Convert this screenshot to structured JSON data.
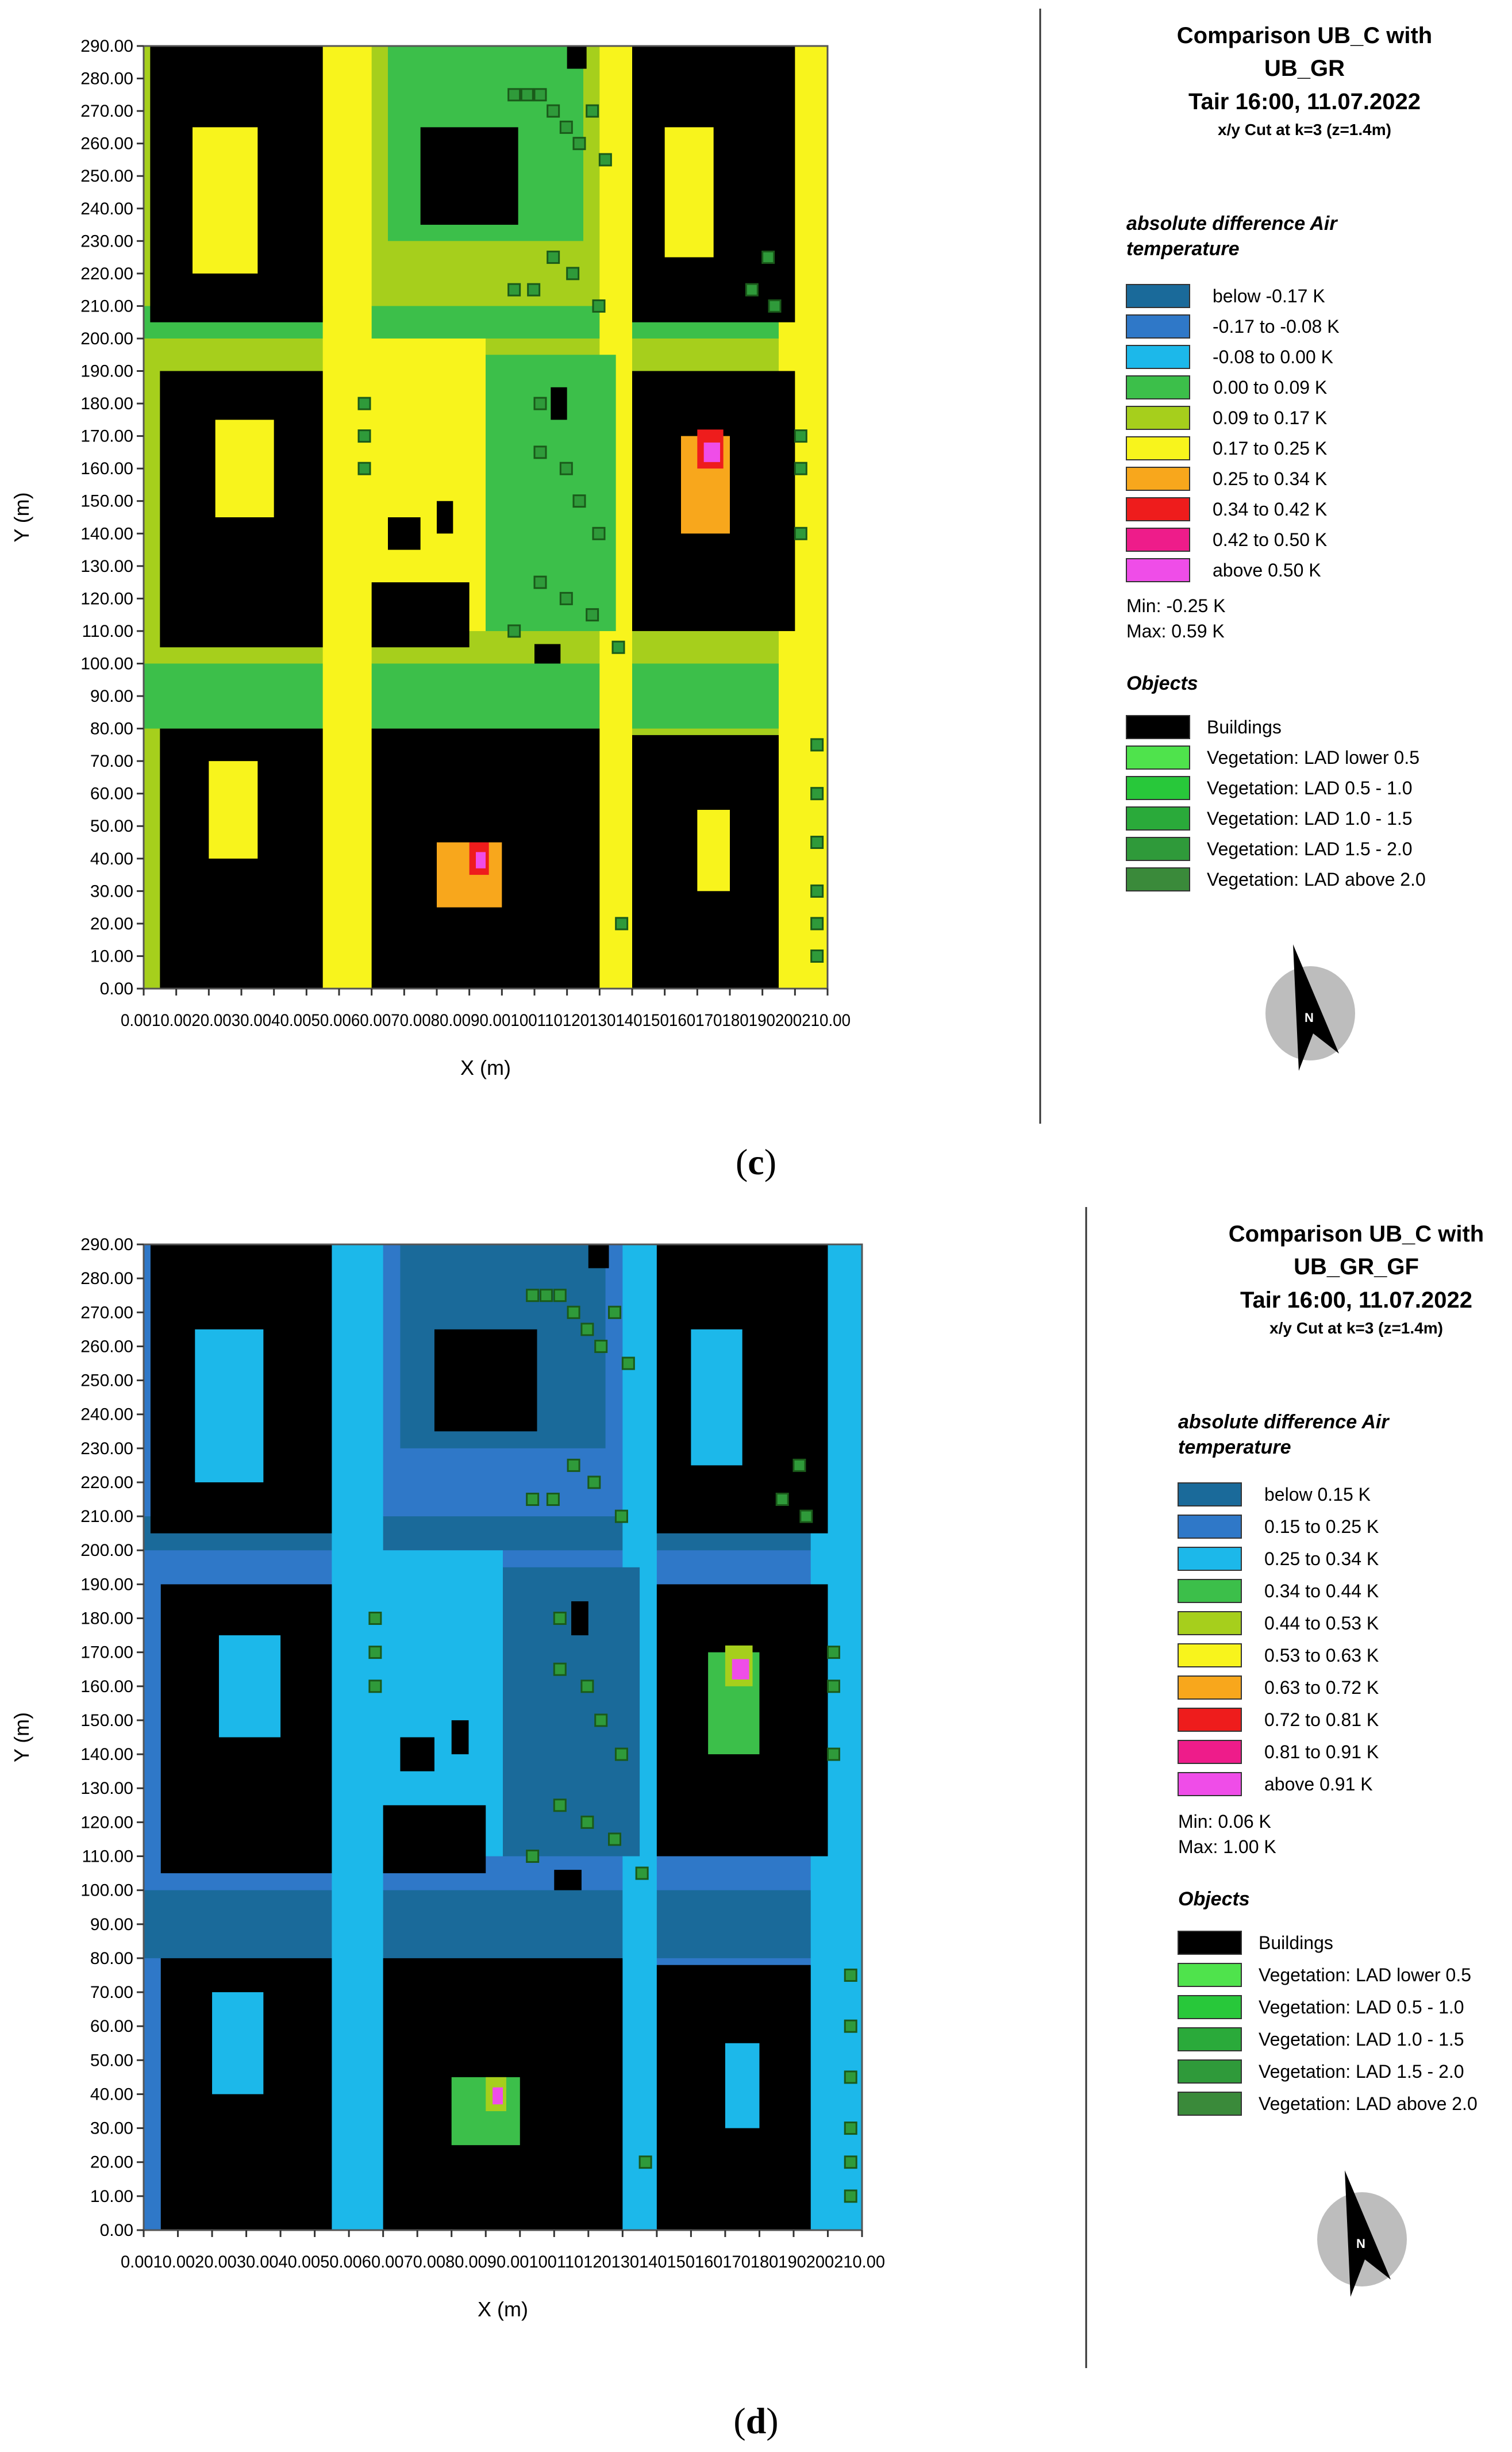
{
  "panels": [
    {
      "id": "c",
      "caption_open": "(",
      "caption_letter": "c",
      "caption_close": ")",
      "title_line1": "Comparison UB_C with",
      "title_line2": "UB_GR",
      "title_line3": "Tair 16:00, 11.07.2022",
      "title_line4": "x/y Cut at k=3 (z=1.4m)",
      "legend_title_line1": "absolute difference Air",
      "legend_title_line2": "temperature",
      "legend_entries": [
        {
          "label": "below -0.17 K",
          "color": "#1a6a9a"
        },
        {
          "label": "-0.17 to -0.08 K",
          "color": "#2f78c8"
        },
        {
          "label": "-0.08 to 0.00 K",
          "color": "#1cb8ea"
        },
        {
          "label": "0.00 to 0.09 K",
          "color": "#3cbf4a"
        },
        {
          "label": "0.09 to 0.17 K",
          "color": "#a6cf1c"
        },
        {
          "label": "0.17 to 0.25 K",
          "color": "#f8f41c"
        },
        {
          "label": "0.25 to 0.34 K",
          "color": "#f8a71c"
        },
        {
          "label": "0.34 to 0.42 K",
          "color": "#ee1c1c"
        },
        {
          "label": "0.42 to 0.50 K",
          "color": "#ee1c8a"
        },
        {
          "label": "above 0.50 K",
          "color": "#ef4de8"
        }
      ],
      "min_text": "Min: -0.25 K",
      "max_text": "Max: 0.59 K",
      "objects_title": "Objects",
      "objects": [
        {
          "label": "Buildings",
          "color": "#000000"
        },
        {
          "label": "Vegetation: LAD lower 0.5",
          "color": "#4fe34c"
        },
        {
          "label": "Vegetation:  LAD 0.5 - 1.0",
          "color": "#28c83a"
        },
        {
          "label": "Vegetation:  LAD 1.0 - 1.5",
          "color": "#2aaa3a"
        },
        {
          "label": "Vegetation:  LAD 1.5 - 2.0",
          "color": "#2f9a3a"
        },
        {
          "label": "Vegetation:  LAD above 2.0",
          "color": "#3a8a3a"
        }
      ],
      "xlabel": "X (m)",
      "ylabel": "Y (m)",
      "yticks": [
        "0.00",
        "10.00",
        "20.00",
        "30.00",
        "40.00",
        "50.00",
        "60.00",
        "70.00",
        "80.00",
        "90.00",
        "100.00",
        "110.00",
        "120.00",
        "130.00",
        "140.00",
        "150.00",
        "160.00",
        "170.00",
        "180.00",
        "190.00",
        "200.00",
        "210.00",
        "220.00",
        "230.00",
        "240.00",
        "250.00",
        "260.00",
        "270.00",
        "280.00",
        "290.00"
      ],
      "xtick_text": "0.0010.0020.0030.0040.0050.0060.0070.0080.0090.00100110120130140150160170180190200210.00",
      "north_label": "N",
      "colors": {
        "background": "#a6cf1c",
        "buildings": "#000000",
        "low": "#3cbf4a",
        "mid": "#f8f41c",
        "high": "#f8a71c",
        "hot": "#ee1c1c",
        "peak": "#ef4de8"
      }
    },
    {
      "id": "d",
      "caption_open": "(",
      "caption_letter": "d",
      "caption_close": ")",
      "title_line1": "Comparison UB_C with",
      "title_line2": "UB_GR_GF",
      "title_line3": "Tair 16:00, 11.07.2022",
      "title_line4": "x/y Cut at k=3 (z=1.4m)",
      "legend_title_line1": "absolute difference Air",
      "legend_title_line2": "temperature",
      "legend_entries": [
        {
          "label": "below 0.15 K",
          "color": "#1a6a9a"
        },
        {
          "label": "0.15 to 0.25 K",
          "color": "#2f78c8"
        },
        {
          "label": "0.25 to 0.34 K",
          "color": "#1cb8ea"
        },
        {
          "label": "0.34 to 0.44 K",
          "color": "#3cbf4a"
        },
        {
          "label": "0.44 to 0.53 K",
          "color": "#a6cf1c"
        },
        {
          "label": "0.53 to 0.63 K",
          "color": "#f8f41c"
        },
        {
          "label": "0.63 to 0.72 K",
          "color": "#f8a71c"
        },
        {
          "label": "0.72 to 0.81 K",
          "color": "#ee1c1c"
        },
        {
          "label": "0.81 to 0.91 K",
          "color": "#ee1c8a"
        },
        {
          "label": "above 0.91 K",
          "color": "#ef4de8"
        }
      ],
      "min_text": "Min: 0.06 K",
      "max_text": "Max: 1.00 K",
      "objects_title": "Objects",
      "objects": [
        {
          "label": "Buildings",
          "color": "#000000"
        },
        {
          "label": "Vegetation: LAD lower 0.5",
          "color": "#4fe34c"
        },
        {
          "label": "Vegetation:  LAD 0.5 - 1.0",
          "color": "#28c83a"
        },
        {
          "label": "Vegetation:  LAD 1.0 - 1.5",
          "color": "#2aaa3a"
        },
        {
          "label": "Vegetation:  LAD 1.5 - 2.0",
          "color": "#2f9a3a"
        },
        {
          "label": "Vegetation:  LAD above 2.0",
          "color": "#3a8a3a"
        }
      ],
      "xlabel": "X (m)",
      "ylabel": "Y (m)",
      "yticks": [
        "0.00",
        "10.00",
        "20.00",
        "30.00",
        "40.00",
        "50.00",
        "60.00",
        "70.00",
        "80.00",
        "90.00",
        "100.00",
        "110.00",
        "120.00",
        "130.00",
        "140.00",
        "150.00",
        "160.00",
        "170.00",
        "180.00",
        "190.00",
        "200.00",
        "210.00",
        "220.00",
        "230.00",
        "240.00",
        "250.00",
        "260.00",
        "270.00",
        "280.00",
        "290.00"
      ],
      "xtick_text": "0.0010.0020.0030.0040.0050.0060.0070.0080.0090.00100110120130140150160170180190200210.00",
      "north_label": "N",
      "colors": {
        "background": "#2f78c8",
        "buildings": "#000000",
        "low": "#1a6a9a",
        "mid": "#1cb8ea",
        "high": "#3cbf4a",
        "hot": "#a6cf1c",
        "peak": "#ef4de8"
      }
    }
  ],
  "chart_data": [
    {
      "type": "heatmap",
      "title": "Comparison UB_C with UB_GR — Tair 16:00, 11.07.2022",
      "subtitle": "x/y Cut at k=3 (z=1.4m)",
      "xlabel": "X (m)",
      "ylabel": "Y (m)",
      "xlim": [
        0,
        210
      ],
      "ylim": [
        0,
        290
      ],
      "colorbar_title": "absolute difference Air temperature",
      "bins": [
        "below -0.17 K",
        "-0.17 to -0.08 K",
        "-0.08 to 0.00 K",
        "0.00 to 0.09 K",
        "0.09 to 0.17 K",
        "0.17 to 0.25 K",
        "0.25 to 0.34 K",
        "0.34 to 0.42 K",
        "0.42 to 0.50 K",
        "above 0.50 K"
      ],
      "min": -0.25,
      "max": 0.59,
      "legend_position": "right"
    },
    {
      "type": "heatmap",
      "title": "Comparison UB_C with UB_GR_GF — Tair 16:00, 11.07.2022",
      "subtitle": "x/y Cut at k=3 (z=1.4m)",
      "xlabel": "X (m)",
      "ylabel": "Y (m)",
      "xlim": [
        0,
        210
      ],
      "ylim": [
        0,
        290
      ],
      "colorbar_title": "absolute difference Air temperature",
      "bins": [
        "below 0.15 K",
        "0.15 to 0.25 K",
        "0.25 to 0.34 K",
        "0.34 to 0.44 K",
        "0.44 to 0.53 K",
        "0.53 to 0.63 K",
        "0.63 to 0.72 K",
        "0.72 to 0.81 K",
        "0.81 to 0.91 K",
        "above 0.91 K"
      ],
      "min": 0.06,
      "max": 1.0,
      "legend_position": "right"
    }
  ]
}
